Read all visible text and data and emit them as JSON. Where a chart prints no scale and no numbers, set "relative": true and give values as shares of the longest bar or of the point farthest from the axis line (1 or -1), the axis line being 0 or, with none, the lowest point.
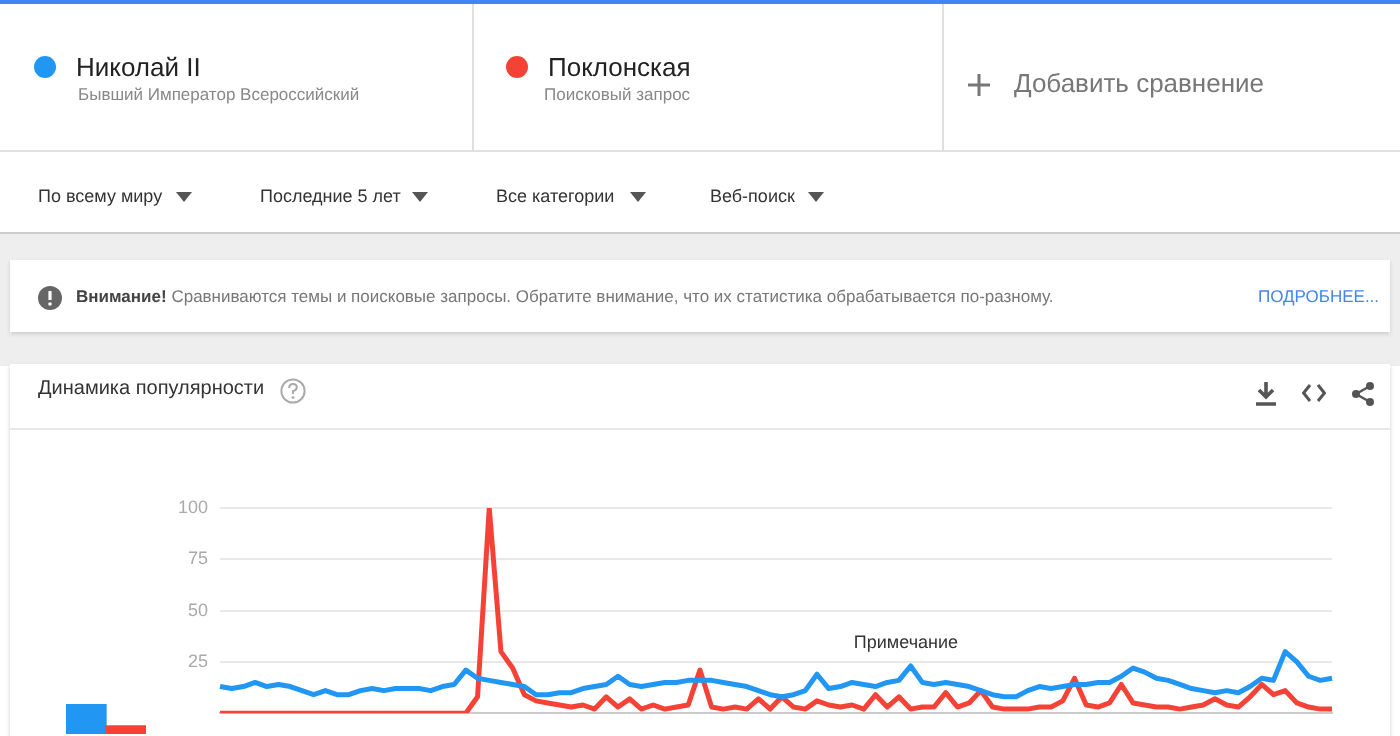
{
  "chart_data": [
    {
      "type": "other",
      "annotations": [
        "Бывший Император Всероссийский",
        "Поисковый запрос",
        "Добавить сравнение",
        "По всему миру",
        "Последние 5 лет",
        "Все категории",
        "Веб-поиск",
        "Внимание!",
        "Сравниваются темы и поисковые запросы. Обратите внимание, что их статистика обрабатывается по-разному.",
        "ПОДРОБНЕЕ..."
      ]
    },
    {
      "type": "bar",
      "relative": true,
      "categories": [
        null,
        null
      ],
      "values": [
        1,
        0.27
      ],
      "colors": [
        "#2196f3",
        "#f44336"
      ],
      "tick_labels": false
    },
    {
      "type": "line",
      "title": "Динамика популярности",
      "categories": [
        null,
        null,
        null,
        null,
        null,
        null,
        null,
        null,
        null,
        null,
        null,
        null,
        null,
        null,
        null,
        null,
        null,
        null,
        null,
        null,
        null,
        null,
        null,
        null,
        null,
        null,
        null,
        null,
        null,
        null,
        null,
        null,
        null,
        null,
        null,
        null,
        null,
        null,
        null,
        null,
        null,
        null,
        null,
        null,
        null,
        null,
        null,
        null,
        null,
        null,
        null,
        null,
        null,
        null,
        null,
        null,
        null,
        null,
        null,
        null,
        null,
        null,
        null,
        null,
        null,
        null,
        null,
        null,
        null,
        null,
        null,
        null,
        null,
        null,
        null,
        null,
        null,
        null,
        null,
        null,
        null,
        null,
        null,
        null,
        null,
        null,
        null,
        null,
        null,
        null,
        null,
        null,
        null,
        null,
        null,
        null
      ],
      "series": [
        {
          "name": "Николай II",
          "color": "#2196f3",
          "values": [
            13,
            12,
            13,
            15,
            13,
            14,
            13,
            11,
            9,
            11,
            9,
            9,
            11,
            12,
            11,
            12,
            12,
            12,
            11,
            13,
            14,
            21,
            17,
            16,
            15,
            14,
            13,
            9,
            9,
            10,
            10,
            12,
            13,
            14,
            18,
            14,
            13,
            14,
            15,
            15,
            16,
            16,
            16,
            15,
            14,
            13,
            11,
            9,
            8,
            9,
            11,
            19,
            12,
            13,
            15,
            14,
            13,
            15,
            16,
            23,
            15,
            14,
            15,
            14,
            13,
            11,
            9,
            8,
            8,
            11,
            13,
            12,
            13,
            14,
            14,
            15,
            15,
            18,
            22,
            20,
            17,
            16,
            14,
            12,
            11,
            10,
            11,
            10,
            13,
            17,
            16,
            30,
            25,
            18,
            16,
            17
          ]
        },
        {
          "name": "Поклонская",
          "color": "#f44336",
          "values": [
            0,
            0,
            0,
            0,
            0,
            0,
            0,
            0,
            0,
            0,
            0,
            0,
            0,
            0,
            0,
            0,
            0,
            0,
            0,
            0,
            0,
            0,
            8,
            100,
            30,
            22,
            9,
            6,
            5,
            4,
            3,
            4,
            2,
            8,
            3,
            7,
            2,
            4,
            2,
            3,
            4,
            21,
            3,
            2,
            3,
            2,
            7,
            2,
            8,
            3,
            2,
            6,
            4,
            3,
            4,
            2,
            9,
            3,
            8,
            2,
            3,
            3,
            10,
            3,
            5,
            11,
            3,
            2,
            2,
            2,
            3,
            3,
            6,
            17,
            4,
            3,
            5,
            14,
            5,
            4,
            3,
            3,
            2,
            3,
            4,
            7,
            4,
            3,
            8,
            14,
            9,
            11,
            5,
            3,
            2,
            2
          ]
        }
      ],
      "ylim": [
        0,
        100
      ],
      "yticks": [
        25,
        50,
        75,
        100
      ],
      "grid": "y",
      "legend": "top",
      "marker": "none",
      "line_style": "solid",
      "tick_labels": "y",
      "annotations": [
        "Примечание"
      ]
    }
  ]
}
